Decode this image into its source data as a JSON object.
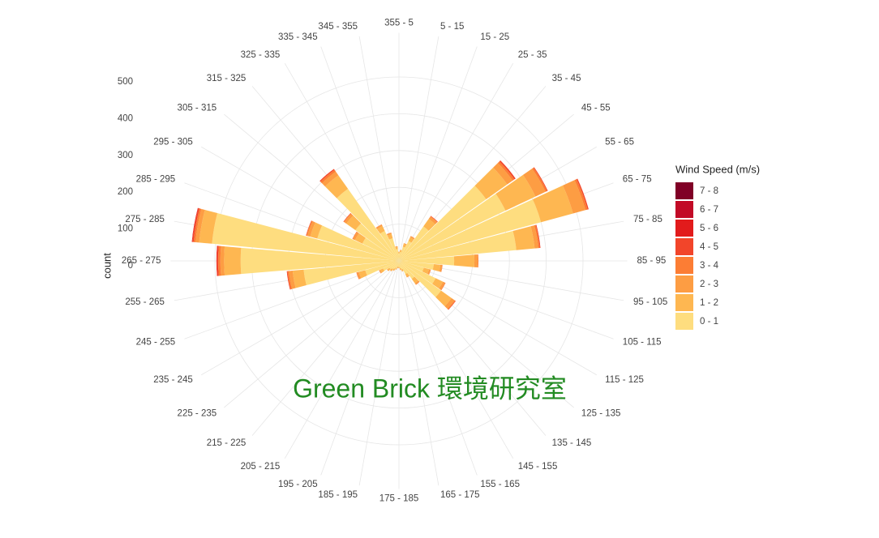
{
  "chart_data": {
    "type": "windrose",
    "y_label": "count",
    "legend_title": "Wind Speed (m/s)",
    "watermark": "Green Brick 環境研究室",
    "categories": [
      "355 - 5",
      "5 - 15",
      "15 - 25",
      "25 - 35",
      "35 - 45",
      "45 - 55",
      "55 - 65",
      "65 - 75",
      "75 - 85",
      "85 - 95",
      "95 - 105",
      "105 - 115",
      "115 - 125",
      "125 - 135",
      "135 - 145",
      "145 - 155",
      "155 - 165",
      "165 - 175",
      "175 - 185",
      "185 - 195",
      "195 - 205",
      "205 - 215",
      "215 - 225",
      "225 - 235",
      "235 - 245",
      "245 - 255",
      "255 - 265",
      "265 - 275",
      "275 - 285",
      "285 - 295",
      "295 - 305",
      "305 - 315",
      "315 - 325",
      "325 - 335",
      "335 - 345",
      "345 - 355"
    ],
    "series": [
      {
        "name": "0 - 1",
        "color": "#fedd7f",
        "values": [
          20,
          24,
          40,
          60,
          115,
          290,
          320,
          400,
          320,
          150,
          95,
          70,
          110,
          140,
          60,
          40,
          24,
          20,
          16,
          16,
          20,
          24,
          28,
          32,
          48,
          95,
          260,
          430,
          510,
          230,
          110,
          145,
          240,
          90,
          64,
          32
        ]
      },
      {
        "name": "1 - 2",
        "color": "#feb751",
        "values": [
          4,
          5,
          8,
          11,
          25,
          70,
          90,
          90,
          50,
          55,
          18,
          15,
          22,
          35,
          15,
          8,
          5,
          4,
          3,
          3,
          4,
          5,
          6,
          6,
          9,
          18,
          30,
          45,
          35,
          20,
          22,
          30,
          45,
          15,
          12,
          6
        ]
      },
      {
        "name": "2 - 3",
        "color": "#fd9d43",
        "values": [
          1,
          1,
          2,
          3,
          7,
          18,
          30,
          35,
          10,
          9,
          5,
          4,
          6,
          10,
          4,
          2,
          1,
          1,
          1,
          1,
          1,
          1,
          1,
          2,
          2,
          5,
          10,
          10,
          10,
          8,
          6,
          7,
          12,
          4,
          3,
          2
        ]
      },
      {
        "name": "3 - 4",
        "color": "#fc7d34",
        "values": [
          0,
          0,
          0,
          1,
          2,
          6,
          5,
          6,
          4,
          2,
          1,
          1,
          2,
          3,
          1,
          0,
          0,
          0,
          0,
          0,
          0,
          0,
          0,
          0,
          1,
          2,
          4,
          6,
          5,
          3,
          2,
          2,
          6,
          1,
          1,
          0
        ]
      },
      {
        "name": "4 - 5",
        "color": "#f2452a",
        "values": [
          0,
          0,
          0,
          0,
          1,
          4,
          2,
          3,
          2,
          0,
          0,
          0,
          0,
          1,
          0,
          0,
          0,
          0,
          0,
          0,
          0,
          0,
          0,
          0,
          0,
          0,
          2,
          4,
          4,
          1,
          0,
          1,
          3,
          0,
          0,
          0
        ]
      },
      {
        "name": "5 - 6",
        "color": "#e21b1c",
        "values": [
          0,
          0,
          0,
          0,
          0,
          0,
          0,
          0,
          0,
          0,
          0,
          0,
          0,
          0,
          0,
          0,
          0,
          0,
          0,
          0,
          0,
          0,
          0,
          0,
          0,
          0,
          0,
          1,
          1,
          0,
          0,
          0,
          0,
          0,
          0,
          0
        ]
      },
      {
        "name": "6 - 7",
        "color": "#c20a26",
        "values": [
          0,
          0,
          0,
          0,
          0,
          0,
          0,
          0,
          0,
          0,
          0,
          0,
          0,
          0,
          0,
          0,
          0,
          0,
          0,
          0,
          0,
          0,
          0,
          0,
          0,
          0,
          0,
          0,
          0,
          0,
          0,
          0,
          0,
          0,
          0,
          0
        ]
      },
      {
        "name": "7 - 8",
        "color": "#800026",
        "values": [
          0,
          0,
          0,
          0,
          0,
          0,
          0,
          0,
          0,
          0,
          0,
          0,
          0,
          0,
          0,
          0,
          0,
          0,
          0,
          0,
          0,
          0,
          0,
          0,
          0,
          0,
          0,
          0,
          0,
          0,
          0,
          0,
          0,
          0,
          0,
          0
        ]
      }
    ],
    "ylim": [
      0,
      620
    ],
    "yticks": [
      0,
      100,
      200,
      300,
      400,
      500
    ],
    "grid": true
  }
}
